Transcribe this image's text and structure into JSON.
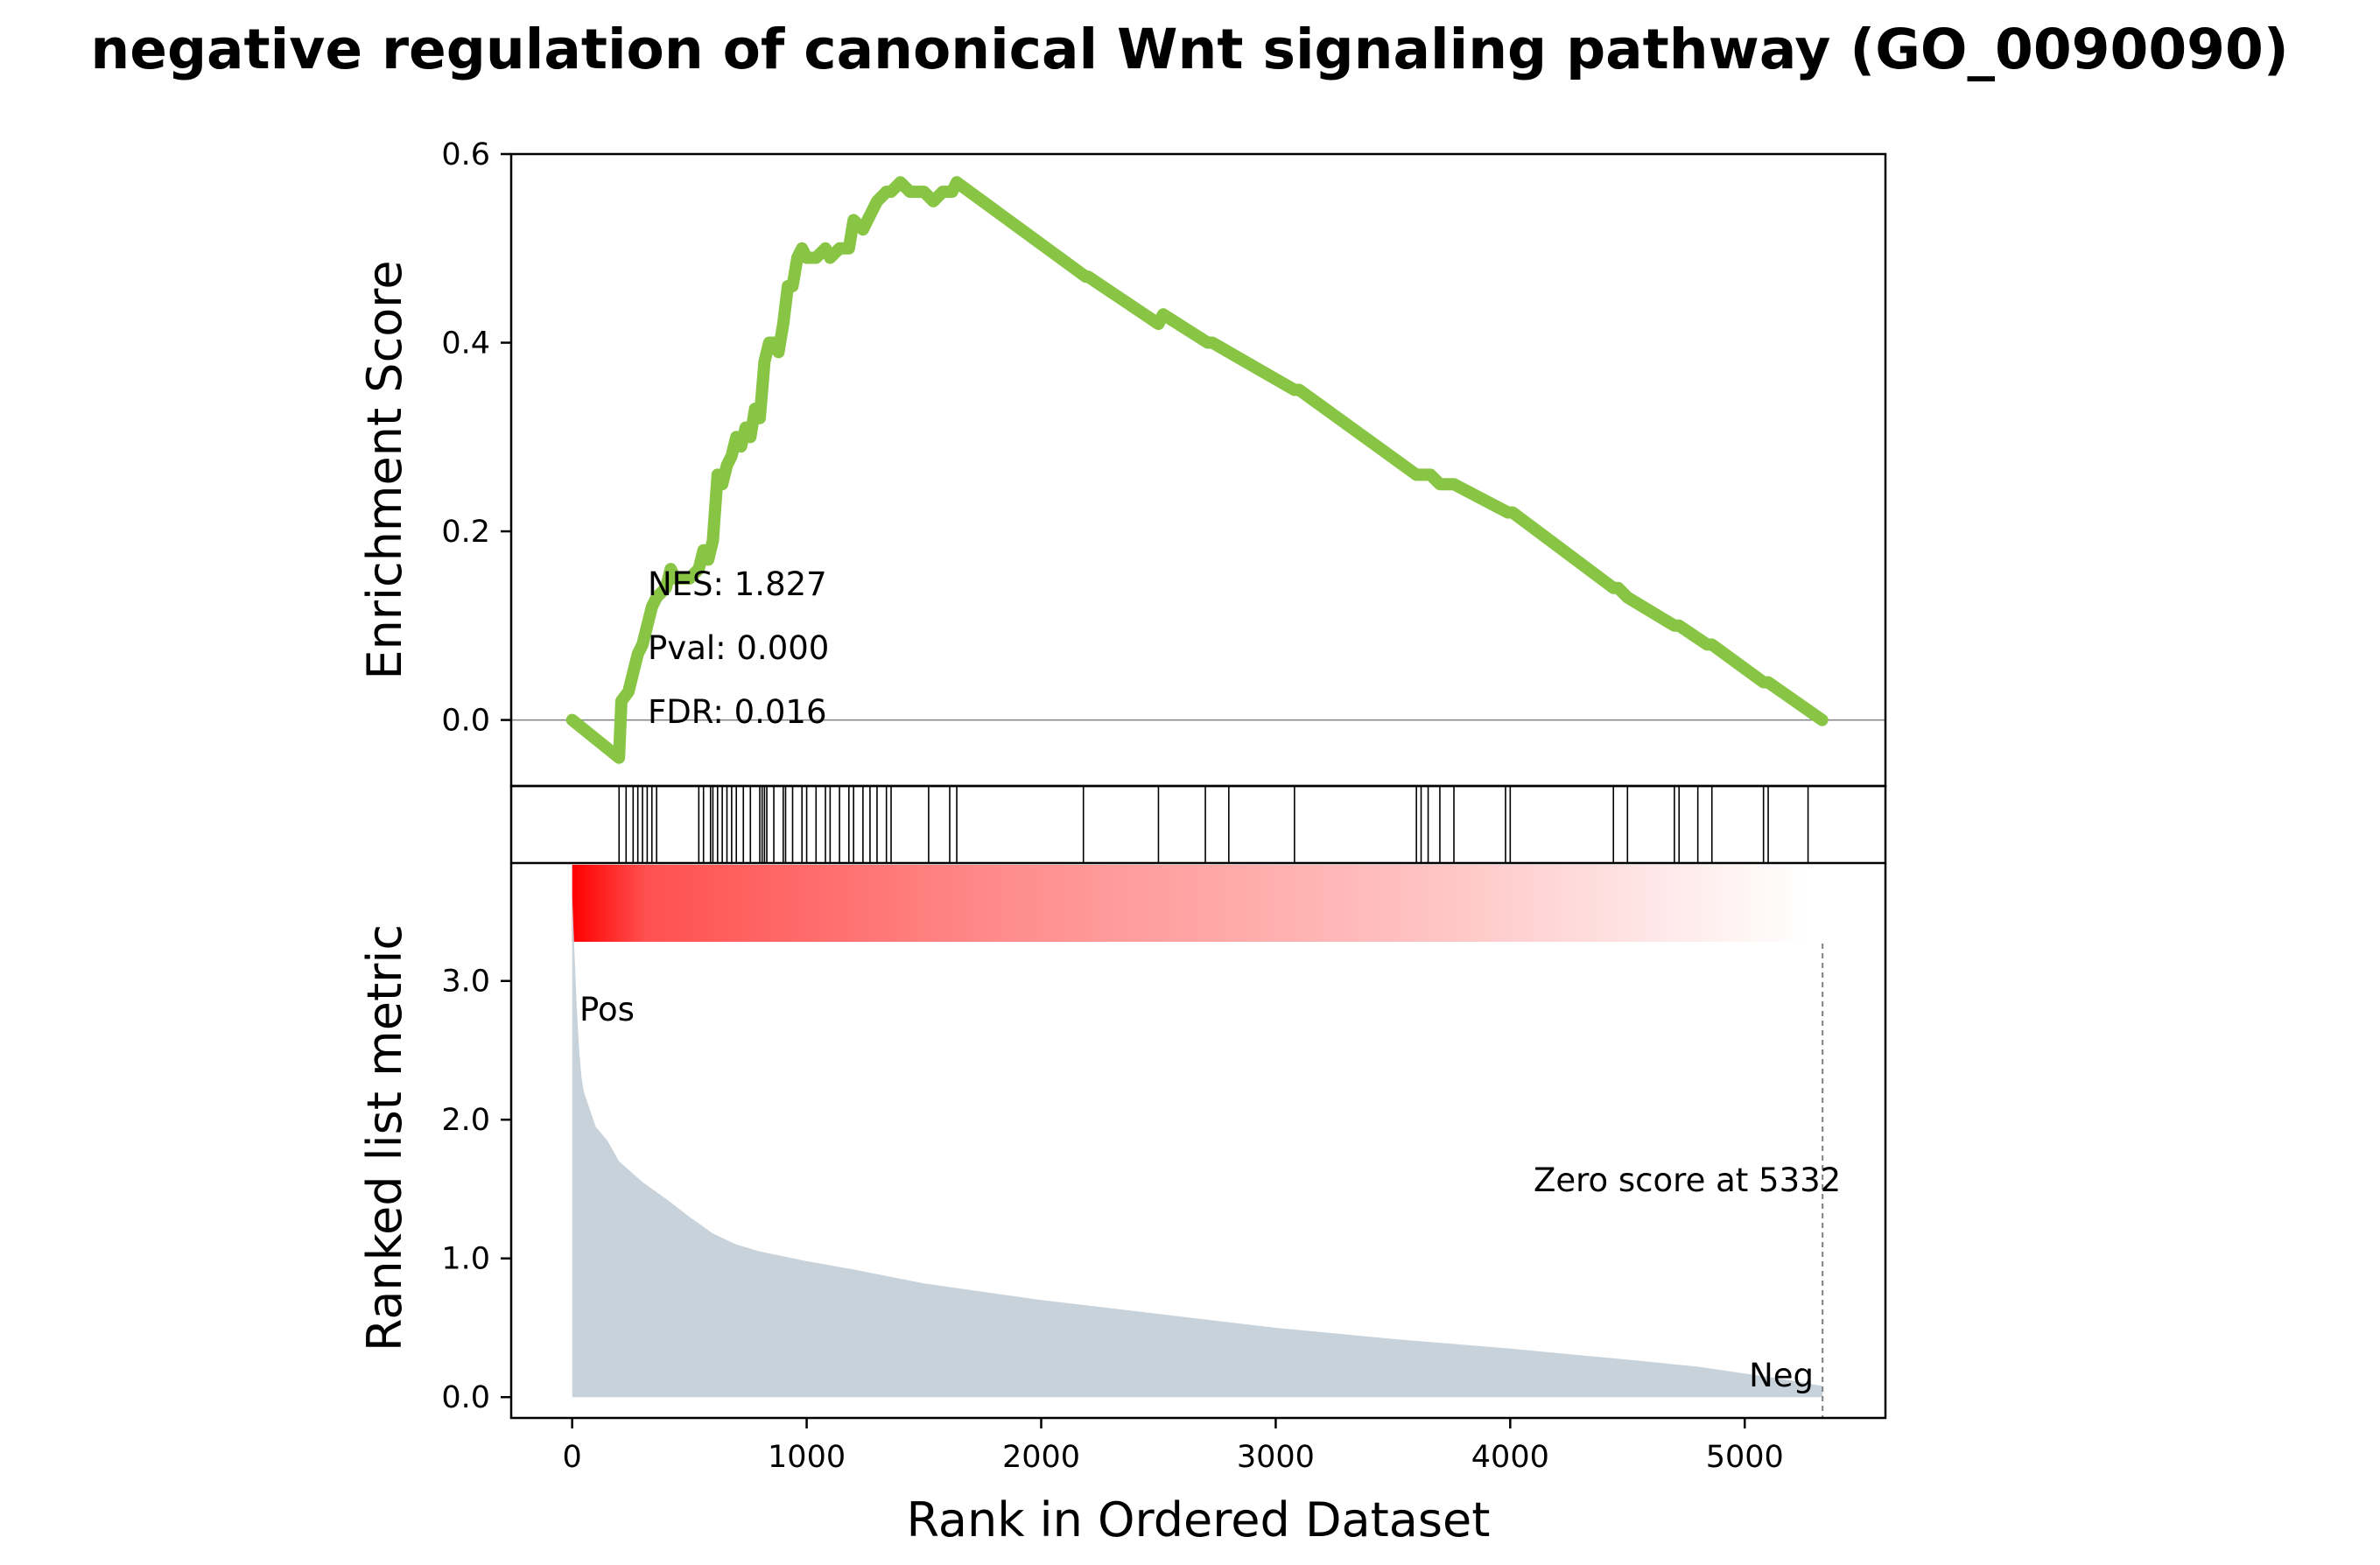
{
  "title": "negative regulation of canonical Wnt signaling pathway (GO_0090090)",
  "chart_data": [
    {
      "type": "line",
      "panel": "running-enrichment-score",
      "ylabel": "Enrichment Score",
      "xlim": [
        -260,
        5600
      ],
      "ylim": [
        -0.07,
        0.6
      ],
      "yticks": [
        0.0,
        0.2,
        0.4,
        0.6
      ],
      "ytick_labels": [
        "0.0",
        "0.2",
        "0.4",
        "0.6"
      ],
      "line_color": "#88c544",
      "series": [
        {
          "x": [
            0,
            200,
            210,
            240,
            260,
            280,
            300,
            320,
            340,
            360,
            400,
            420,
            440,
            460,
            500,
            540,
            560,
            580,
            600,
            620,
            640,
            660,
            680,
            700,
            720,
            740,
            760,
            780,
            800,
            820,
            840,
            860,
            880,
            900,
            920,
            940,
            960,
            980,
            1000,
            1040,
            1080,
            1100,
            1140,
            1180,
            1200,
            1240,
            1260,
            1300,
            1340,
            1360,
            1400,
            1440,
            1500,
            1540,
            1580,
            1620,
            1640,
            2190,
            2200,
            2500,
            2520,
            2710,
            2730,
            2800,
            3080,
            3100,
            3600,
            3620,
            3660,
            3700,
            3760,
            3990,
            4010,
            4440,
            4460,
            4500,
            4700,
            4720,
            4840,
            4860,
            5080,
            5100,
            5330
          ],
          "y": [
            0.0,
            -0.04,
            0.02,
            0.03,
            0.05,
            0.07,
            0.08,
            0.1,
            0.12,
            0.13,
            0.14,
            0.16,
            0.15,
            0.15,
            0.15,
            0.16,
            0.18,
            0.17,
            0.19,
            0.26,
            0.25,
            0.27,
            0.28,
            0.3,
            0.29,
            0.31,
            0.3,
            0.33,
            0.32,
            0.38,
            0.4,
            0.4,
            0.39,
            0.42,
            0.46,
            0.46,
            0.49,
            0.5,
            0.49,
            0.49,
            0.5,
            0.49,
            0.5,
            0.5,
            0.53,
            0.52,
            0.53,
            0.55,
            0.56,
            0.56,
            0.57,
            0.56,
            0.56,
            0.55,
            0.56,
            0.56,
            0.57,
            0.47,
            0.47,
            0.42,
            0.43,
            0.4,
            0.4,
            0.39,
            0.35,
            0.35,
            0.26,
            0.26,
            0.26,
            0.25,
            0.25,
            0.22,
            0.22,
            0.14,
            0.14,
            0.13,
            0.1,
            0.1,
            0.08,
            0.08,
            0.04,
            0.04,
            0.0
          ]
        }
      ],
      "zero_line": 0.0
    },
    {
      "type": "scatter",
      "panel": "hit-markers",
      "hits": [
        200,
        230,
        260,
        280,
        300,
        320,
        340,
        360,
        540,
        560,
        590,
        600,
        620,
        640,
        660,
        680,
        700,
        730,
        760,
        800,
        810,
        820,
        830,
        860,
        900,
        910,
        940,
        980,
        1000,
        1040,
        1080,
        1100,
        1140,
        1180,
        1200,
        1240,
        1270,
        1300,
        1340,
        1360,
        1520,
        1610,
        1640,
        2180,
        2500,
        2700,
        2800,
        3080,
        3600,
        3620,
        3650,
        3700,
        3760,
        3980,
        4000,
        4440,
        4500,
        4700,
        4720,
        4800,
        4860,
        5080,
        5100,
        5270
      ]
    },
    {
      "type": "heatmap",
      "panel": "rank-color-bar",
      "gradient": {
        "from": "#ff0000",
        "to": "#ffffff"
      },
      "x_range": [
        0,
        5270
      ]
    },
    {
      "type": "area",
      "panel": "ranked-list-metric",
      "ylabel": "Ranked list metric",
      "xlabel": "Rank in Ordered Dataset",
      "xlim": [
        -260,
        5600
      ],
      "ylim": [
        -0.15,
        3.85
      ],
      "yticks": [
        0.0,
        1.0,
        2.0,
        3.0
      ],
      "ytick_labels": [
        "0.0",
        "1.0",
        "2.0",
        "3.0"
      ],
      "xticks": [
        0,
        1000,
        2000,
        3000,
        4000,
        5000
      ],
      "xtick_labels": [
        "0",
        "1000",
        "2000",
        "3000",
        "4000",
        "5000"
      ],
      "fill_color": "#c8d2da",
      "series": [
        {
          "x": [
            0,
            10,
            20,
            30,
            40,
            50,
            70,
            100,
            150,
            200,
            300,
            400,
            500,
            600,
            700,
            800,
            1000,
            1200,
            1500,
            2000,
            2500,
            3000,
            3500,
            4000,
            4500,
            4800,
            5000,
            5200,
            5332
          ],
          "y": [
            3.62,
            3.2,
            2.8,
            2.5,
            2.3,
            2.2,
            2.1,
            1.95,
            1.85,
            1.7,
            1.55,
            1.43,
            1.3,
            1.18,
            1.1,
            1.05,
            0.98,
            0.92,
            0.82,
            0.7,
            0.6,
            0.5,
            0.42,
            0.35,
            0.27,
            0.22,
            0.17,
            0.12,
            0.08
          ]
        }
      ],
      "pos_label": "Pos",
      "neg_label": "Neg",
      "pos_color": "#ff0000",
      "neg_color": "#0000ff",
      "zero_cross": 5332,
      "zero_text": "Zero score at 5332"
    }
  ],
  "stats": {
    "nes": "NES: 1.827",
    "pval": "Pval: 0.000",
    "fdr": "FDR: 0.016"
  }
}
